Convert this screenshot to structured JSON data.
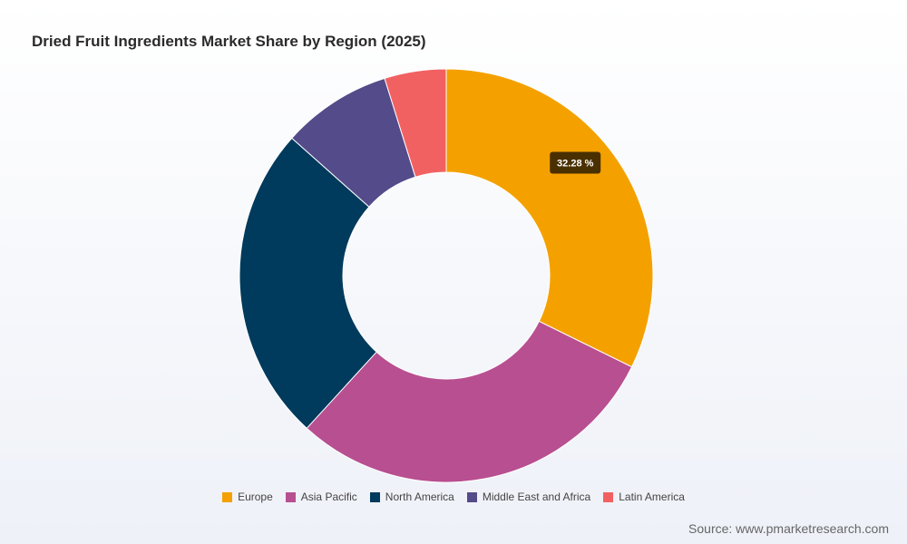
{
  "chart_data": {
    "type": "pie",
    "title": "Dried Fruit Ingredients Market Share by Region (2025)",
    "categories": [
      "Europe",
      "Asia Pacific",
      "North America",
      "Middle East and Africa",
      "Latin America"
    ],
    "values": [
      32.28,
      29.5,
      24.8,
      8.6,
      4.82
    ],
    "colors": [
      "#f4a100",
      "#b84f91",
      "#003a5c",
      "#544b8a",
      "#f26161"
    ],
    "data_labels": [
      {
        "category": "Europe",
        "text": "32.28 %"
      }
    ],
    "donut": true,
    "legend_position": "bottom"
  },
  "source": "Source: www.pmarketresearch.com"
}
